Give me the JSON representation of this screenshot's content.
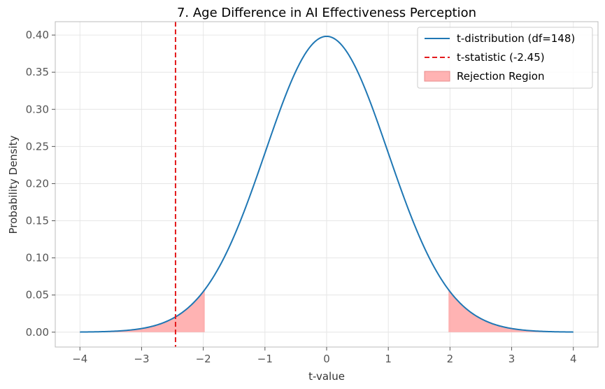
{
  "chart_data": {
    "type": "line",
    "title": "7. Age Difference in AI Effectiveness Perception",
    "xlabel": "t-value",
    "ylabel": "Probability Density",
    "xlim": [
      -4.4,
      4.4
    ],
    "ylim": [
      -0.02,
      0.418
    ],
    "x_ticks": [
      -4,
      -3,
      -2,
      -1,
      0,
      1,
      2,
      3,
      4
    ],
    "x_tick_labels": [
      "−4",
      "−3",
      "−2",
      "−1",
      "0",
      "1",
      "2",
      "3",
      "4"
    ],
    "y_ticks": [
      0.0,
      0.05,
      0.1,
      0.15,
      0.2,
      0.25,
      0.3,
      0.35,
      0.4
    ],
    "y_tick_labels": [
      "0.00",
      "0.05",
      "0.10",
      "0.15",
      "0.20",
      "0.25",
      "0.30",
      "0.35",
      "0.40"
    ],
    "grid": true,
    "legend_position": "top-right",
    "series": [
      {
        "name": "t-distribution (df=148)",
        "kind": "line",
        "color": "#1f77b4",
        "x": [
          -4,
          -3.75,
          -3.5,
          -3.25,
          -3,
          -2.75,
          -2.5,
          -2.25,
          -2,
          -1.75,
          -1.5,
          -1.25,
          -1,
          -0.75,
          -0.5,
          -0.25,
          0,
          0.25,
          0.5,
          0.75,
          1,
          1.25,
          1.5,
          1.75,
          2,
          2.25,
          2.5,
          2.75,
          3,
          3.25,
          3.5,
          3.75,
          4
        ],
        "y": [
          0.0002,
          0.0004,
          0.001,
          0.0022,
          0.0046,
          0.0093,
          0.0177,
          0.032,
          0.0547,
          0.0866,
          0.1295,
          0.1829,
          0.2418,
          0.3007,
          0.3517,
          0.3863,
          0.3983,
          0.3863,
          0.3517,
          0.3007,
          0.2418,
          0.1829,
          0.1295,
          0.0866,
          0.0547,
          0.032,
          0.0177,
          0.0093,
          0.0046,
          0.0022,
          0.001,
          0.0004,
          0.0002
        ]
      },
      {
        "name": "t-statistic (-2.45)",
        "kind": "vline",
        "color": "#e31a1c",
        "x": -2.45
      },
      {
        "name": "Rejection Region",
        "kind": "fill",
        "color": "#ff9999",
        "regions": [
          [
            -4,
            -1.976
          ],
          [
            1.976,
            4
          ]
        ]
      }
    ]
  }
}
